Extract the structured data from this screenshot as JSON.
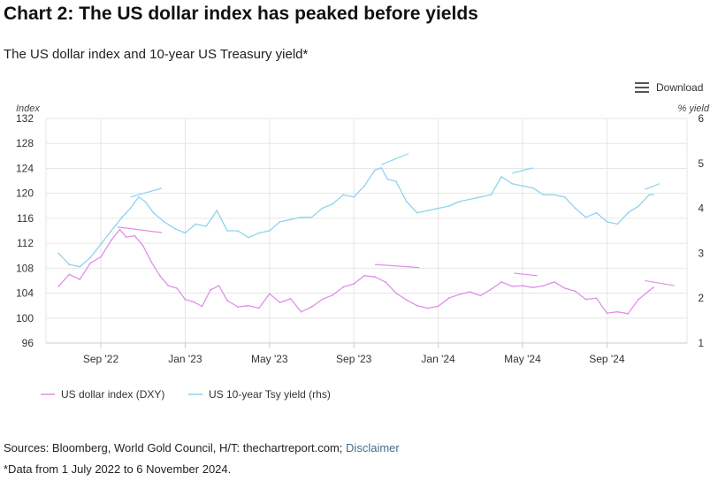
{
  "header": {
    "title": "Chart 2: The US dollar index has peaked before yields",
    "subtitle": "The US dollar index and 10-year US Treasury yield*"
  },
  "toolbar": {
    "download_label": "Download",
    "download_icon": "hamburger-menu-icon"
  },
  "footer": {
    "sources_text": "Sources: Bloomberg, World Gold Council, H/T: thechartreport.com;",
    "disclaimer_link": "Disclaimer",
    "footnote": "*Data from 1 July 2022 to 6 November 2024."
  },
  "chart_data": {
    "type": "line",
    "title": "Chart 2: The US dollar index has peaked before yields",
    "subtitle": "The US dollar index and 10-year US Treasury yield*",
    "x_ticks": [
      "Sep '22",
      "Jan '23",
      "May '23",
      "Sep '23",
      "Jan '24",
      "May '24",
      "Sep '24"
    ],
    "x_tick_months": [
      2,
      6,
      10,
      14,
      18,
      22,
      26
    ],
    "x_range_months": [
      -0.6,
      29.8
    ],
    "y_left": {
      "label": "Index",
      "ylim": [
        96,
        132
      ],
      "ticks": [
        "132",
        "128",
        "124",
        "120",
        "116",
        "112",
        "108",
        "104",
        "100",
        "96"
      ]
    },
    "y_right": {
      "label": "% yield",
      "ylim": [
        1,
        6
      ],
      "ticks": [
        "6",
        "5",
        "4",
        "3",
        "2",
        "1"
      ]
    },
    "grid": true,
    "series": [
      {
        "name": "US dollar index (DXY)",
        "axis": "left",
        "color": "#e090e8",
        "x": [
          0,
          0.5,
          1,
          1.5,
          2,
          2.5,
          2.9,
          3.2,
          3.6,
          4,
          4.4,
          4.8,
          5.2,
          5.6,
          6,
          6.4,
          6.8,
          7.2,
          7.6,
          8,
          8.5,
          9,
          9.5,
          10,
          10.5,
          11,
          11.5,
          12,
          12.5,
          13,
          13.5,
          14,
          14.5,
          15,
          15.5,
          16,
          16.5,
          17,
          17.5,
          18,
          18.5,
          19,
          19.5,
          20,
          20.5,
          21,
          21.5,
          22,
          22.5,
          23,
          23.5,
          24,
          24.5,
          25,
          25.5,
          26,
          26.5,
          27,
          27.5,
          28,
          28.2
        ],
        "values": [
          105.1,
          107.0,
          106.2,
          108.8,
          109.8,
          112.5,
          114.2,
          113.0,
          113.2,
          111.6,
          109.0,
          106.8,
          105.2,
          104.8,
          103.0,
          102.6,
          101.9,
          104.5,
          105.2,
          102.8,
          101.8,
          102.0,
          101.6,
          103.9,
          102.5,
          103.1,
          101.0,
          101.8,
          103.0,
          103.7,
          105.0,
          105.5,
          106.8,
          106.6,
          105.8,
          104.0,
          102.9,
          102.0,
          101.6,
          101.9,
          103.2,
          103.8,
          104.2,
          103.6,
          104.6,
          105.8,
          105.1,
          105.2,
          104.9,
          105.2,
          105.8,
          104.8,
          104.3,
          103.0,
          103.2,
          100.8,
          101.0,
          100.7,
          103.0,
          104.4,
          104.9
        ]
      },
      {
        "name": "US 10-year Tsy yield (rhs)",
        "axis": "right",
        "color": "#8fd3ee",
        "x": [
          0,
          0.5,
          1,
          1.5,
          2,
          2.5,
          3,
          3.4,
          3.8,
          4.1,
          4.5,
          5,
          5.5,
          6,
          6.5,
          7,
          7.5,
          8,
          8.5,
          9,
          9.5,
          10,
          10.5,
          11,
          11.5,
          12,
          12.5,
          13,
          13.5,
          14,
          14.5,
          15,
          15.3,
          15.6,
          16,
          16.5,
          17,
          17.5,
          18,
          18.5,
          19,
          19.5,
          20,
          20.5,
          21,
          21.5,
          22,
          22.5,
          23,
          23.5,
          24,
          24.5,
          25,
          25.5,
          26,
          26.5,
          27,
          27.5,
          28,
          28.2
        ],
        "values": [
          3.0,
          2.75,
          2.7,
          2.9,
          3.2,
          3.5,
          3.8,
          4.0,
          4.25,
          4.15,
          3.9,
          3.7,
          3.55,
          3.45,
          3.65,
          3.6,
          3.95,
          3.5,
          3.5,
          3.35,
          3.45,
          3.5,
          3.7,
          3.75,
          3.8,
          3.8,
          4.0,
          4.1,
          4.3,
          4.25,
          4.5,
          4.85,
          4.9,
          4.65,
          4.6,
          4.15,
          3.9,
          3.95,
          4.0,
          4.05,
          4.15,
          4.2,
          4.25,
          4.3,
          4.7,
          4.55,
          4.5,
          4.45,
          4.3,
          4.3,
          4.25,
          4.0,
          3.8,
          3.9,
          3.7,
          3.65,
          3.9,
          4.05,
          4.3,
          4.3
        ]
      }
    ],
    "annotations": [
      {
        "series": "US 10-year Tsy yield (rhs)",
        "axis": "right",
        "x": [
          3.4,
          4.9
        ],
        "y": [
          4.25,
          4.45
        ]
      },
      {
        "series": "US 10-year Tsy yield (rhs)",
        "axis": "right",
        "x": [
          15.3,
          16.6
        ],
        "y": [
          4.97,
          5.22
        ]
      },
      {
        "series": "US 10-year Tsy yield (rhs)",
        "axis": "right",
        "x": [
          21.5,
          22.5
        ],
        "y": [
          4.78,
          4.9
        ]
      },
      {
        "series": "US 10-year Tsy yield (rhs)",
        "axis": "right",
        "x": [
          27.8,
          28.5
        ],
        "y": [
          4.42,
          4.55
        ]
      },
      {
        "series": "US dollar index (DXY)",
        "axis": "left",
        "x": [
          2.8,
          4.9
        ],
        "y": [
          114.6,
          113.7
        ]
      },
      {
        "series": "US dollar index (DXY)",
        "axis": "left",
        "x": [
          15.0,
          17.1
        ],
        "y": [
          108.6,
          108.1
        ]
      },
      {
        "series": "US dollar index (DXY)",
        "axis": "left",
        "x": [
          21.6,
          22.7
        ],
        "y": [
          107.2,
          106.8
        ]
      },
      {
        "series": "US dollar index (DXY)",
        "axis": "left",
        "x": [
          27.8,
          29.2
        ],
        "y": [
          106.0,
          105.2
        ]
      }
    ]
  }
}
